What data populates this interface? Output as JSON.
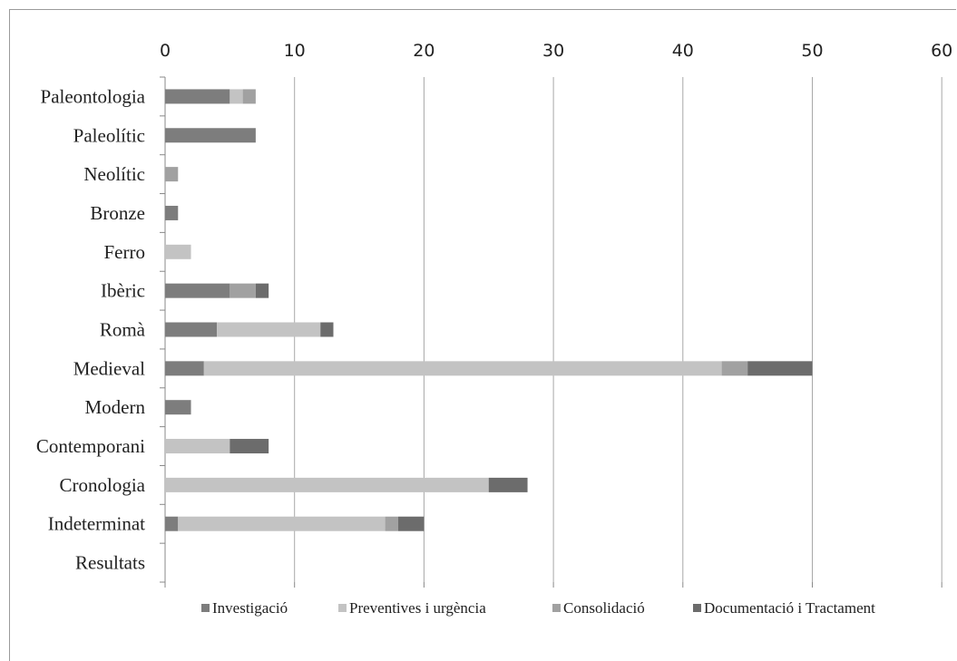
{
  "chart_data": {
    "type": "bar",
    "orientation": "horizontal",
    "stacked": true,
    "categories": [
      "Paleontologia",
      "Paleolític",
      "Neolític",
      "Bronze",
      "Ferro",
      "Ibèric",
      "Romà",
      "Medieval",
      "Modern",
      "Contemporani",
      "Cronologia",
      "Indeterminat",
      "Resultats"
    ],
    "series": [
      {
        "name": "Investigació",
        "color": "#7d7d7d",
        "values": [
          5,
          7,
          0,
          1,
          0,
          5,
          4,
          3,
          2,
          0,
          0,
          1,
          0
        ]
      },
      {
        "name": "Preventives i urgència",
        "color": "#c3c3c3",
        "values": [
          1,
          0,
          0,
          0,
          2,
          0,
          8,
          40,
          0,
          5,
          25,
          16,
          0
        ]
      },
      {
        "name": "Consolidació",
        "color": "#a1a1a1",
        "values": [
          1,
          0,
          1,
          0,
          0,
          2,
          0,
          2,
          0,
          0,
          0,
          1,
          0
        ]
      },
      {
        "name": "Documentació i Tractament",
        "color": "#6c6c6c",
        "values": [
          0,
          0,
          0,
          0,
          0,
          1,
          1,
          5,
          0,
          3,
          3,
          2,
          0
        ]
      }
    ],
    "xlim": [
      0,
      60
    ],
    "xticks": [
      "0",
      "10",
      "20",
      "30",
      "40",
      "50",
      "60"
    ],
    "grid": "vertical",
    "legend_position": "bottom",
    "title": "",
    "xlabel": "",
    "ylabel": ""
  }
}
